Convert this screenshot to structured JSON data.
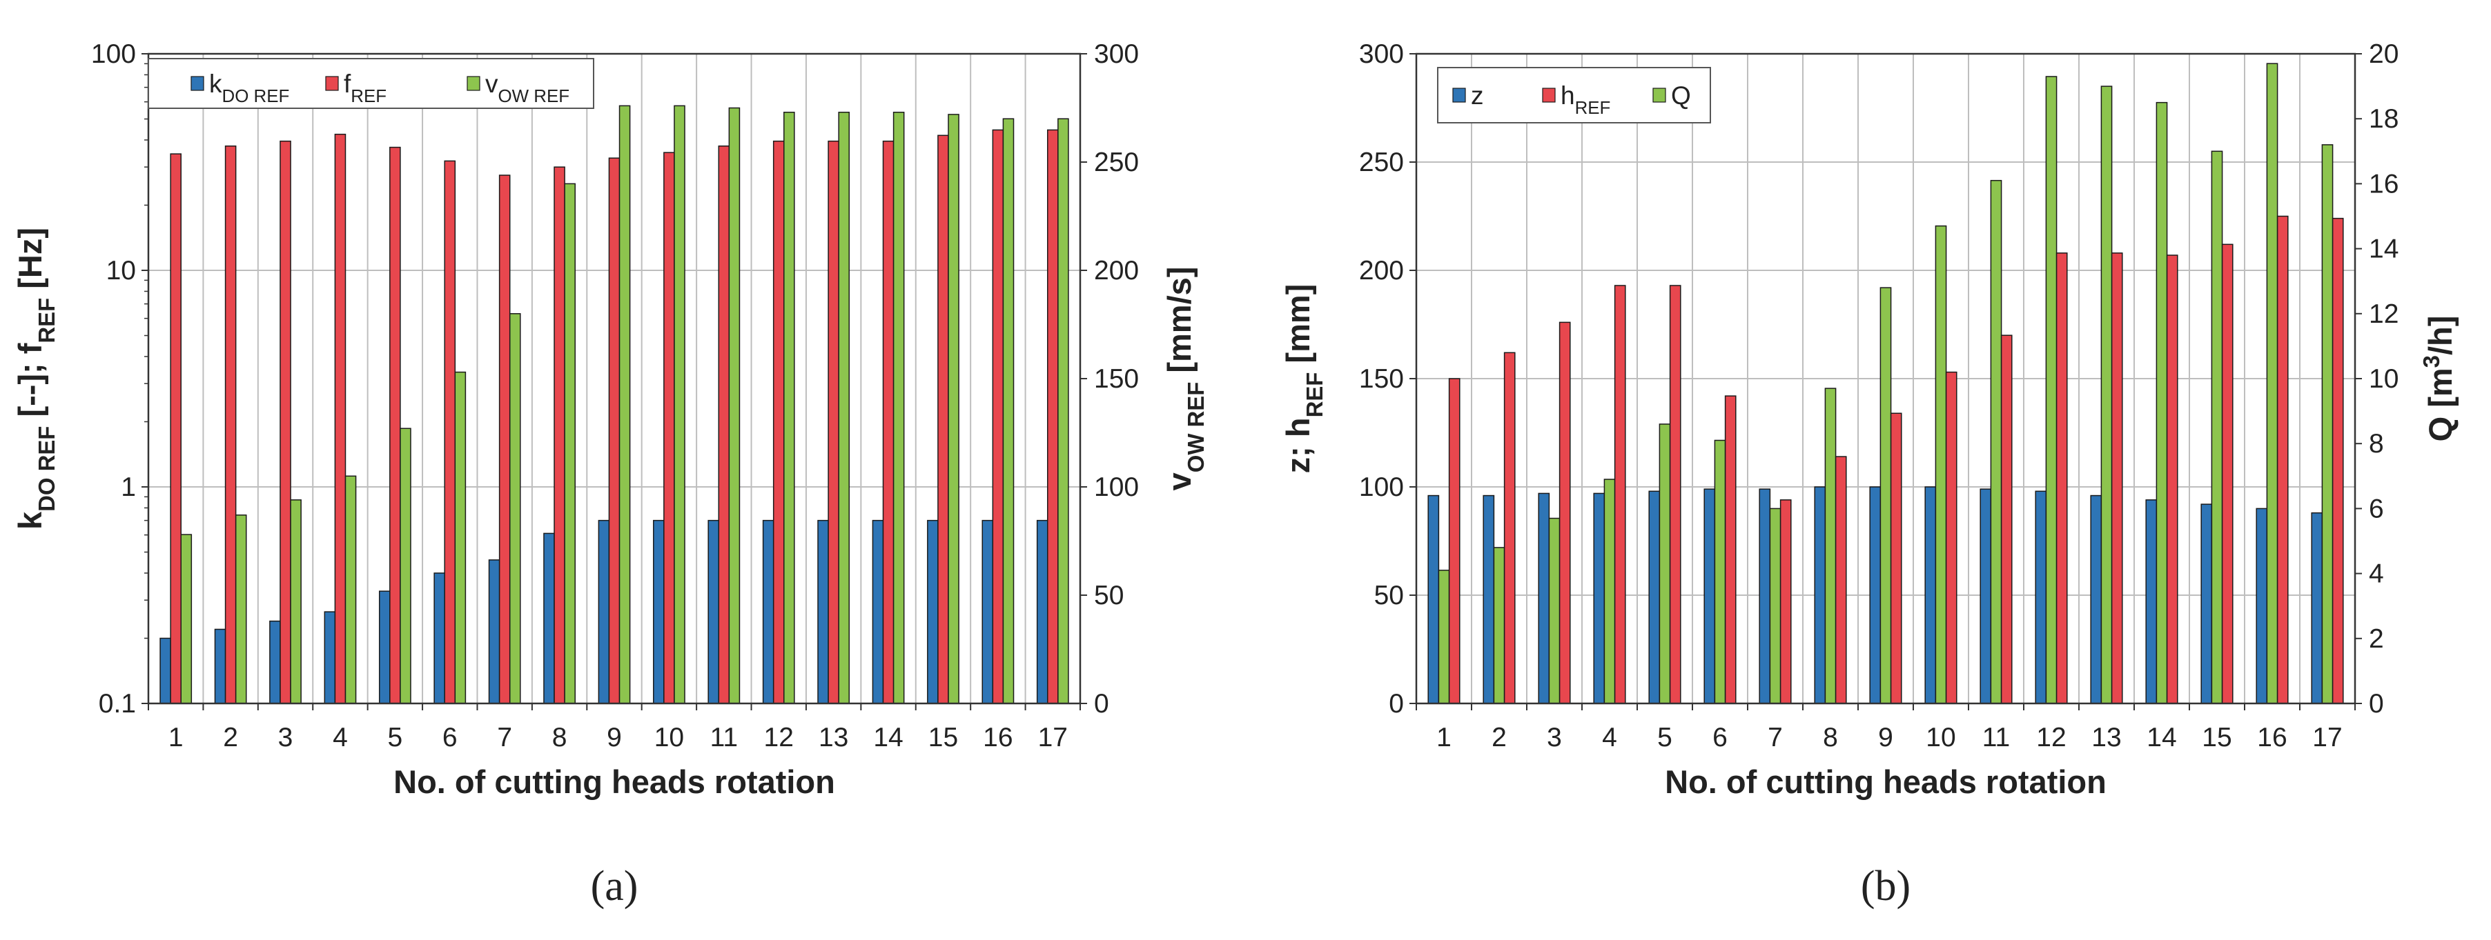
{
  "colors": {
    "blue": "#2E75B6",
    "red": "#E8474E",
    "green": "#8DC44E",
    "grid": "#BEBEBE",
    "axis": "#333333"
  },
  "chart_data": [
    {
      "type": "bar",
      "panel_label": "(a)",
      "categories": [
        "1",
        "2",
        "3",
        "4",
        "5",
        "6",
        "7",
        "8",
        "9",
        "10",
        "11",
        "12",
        "13",
        "14",
        "15",
        "16",
        "17"
      ],
      "xlabel": "No. of cutting heads rotation",
      "y_left": {
        "scale": "log",
        "range": [
          0.1,
          100
        ],
        "ticks": [
          "0.1",
          "1",
          "10",
          "100"
        ],
        "label": "kDO REF  [--]; fREF  [Hz]"
      },
      "y_right": {
        "scale": "linear",
        "range": [
          0,
          300
        ],
        "ticks": [
          "0",
          "50",
          "100",
          "150",
          "200",
          "250",
          "300"
        ],
        "label": "vOW REF  [mm/s]"
      },
      "grid": true,
      "legend": "top-left",
      "series": [
        {
          "name": "kDO REF",
          "axis": "left",
          "color": "blue",
          "values": [
            0.2,
            0.22,
            0.24,
            0.265,
            0.33,
            0.4,
            0.46,
            0.61,
            0.7,
            0.7,
            0.7,
            0.7,
            0.7,
            0.7,
            0.7,
            0.7,
            0.7
          ]
        },
        {
          "name": "fREF",
          "axis": "left",
          "color": "red",
          "values": [
            34.5,
            37.5,
            39.5,
            42.5,
            37.0,
            32.0,
            27.5,
            30.0,
            33.0,
            35.0,
            37.5,
            39.5,
            39.5,
            39.5,
            42.0,
            44.5,
            44.5
          ]
        },
        {
          "name": "vOW REF",
          "axis": "right",
          "color": "green",
          "values": [
            78,
            87,
            94,
            105,
            127,
            153,
            180,
            240,
            276,
            276,
            275,
            273,
            273,
            273,
            272,
            270,
            270
          ]
        }
      ],
      "legend_entries": [
        {
          "main": "k",
          "sub": "DO REF",
          "color": "blue"
        },
        {
          "main": "f",
          "sub": "REF",
          "color": "red"
        },
        {
          "main": "v",
          "sub": "OW REF",
          "color": "green"
        }
      ],
      "ylabel_left_parts": [
        {
          "main": "k",
          "sub": "DO REF"
        },
        {
          "main": "  [--]; f",
          "sub": "REF"
        },
        {
          "main": "  [Hz]",
          "sub": ""
        }
      ],
      "ylabel_right_parts": [
        {
          "main": "v",
          "sub": "OW REF"
        },
        {
          "main": "  [mm/s]",
          "sub": ""
        }
      ]
    },
    {
      "type": "bar",
      "panel_label": "(b)",
      "categories": [
        "1",
        "2",
        "3",
        "4",
        "5",
        "6",
        "7",
        "8",
        "9",
        "10",
        "11",
        "12",
        "13",
        "14",
        "15",
        "16",
        "17"
      ],
      "xlabel": "No. of cutting heads rotation",
      "y_left": {
        "scale": "linear",
        "range": [
          0,
          300
        ],
        "ticks": [
          "0",
          "50",
          "100",
          "150",
          "200",
          "250",
          "300"
        ],
        "label": "z; hREF  [mm]"
      },
      "y_right": {
        "scale": "linear",
        "range": [
          0,
          20
        ],
        "ticks": [
          "0",
          "2",
          "4",
          "6",
          "8",
          "10",
          "12",
          "14",
          "16",
          "18",
          "20"
        ],
        "label": "Q  [m3/h]"
      },
      "grid": true,
      "legend": "top-left",
      "series": [
        {
          "name": "z",
          "axis": "left",
          "color": "blue",
          "values": [
            96,
            96,
            97,
            97,
            98,
            99,
            99,
            100,
            100,
            100,
            99,
            98,
            96,
            94,
            92,
            90,
            88
          ]
        },
        {
          "name": "Q",
          "axis": "right",
          "color": "green",
          "values": [
            4.1,
            4.8,
            5.7,
            6.9,
            8.6,
            8.1,
            6.0,
            9.7,
            12.8,
            14.7,
            16.1,
            19.3,
            19.0,
            18.5,
            17.0,
            19.7,
            17.2
          ]
        },
        {
          "name": "hREF",
          "axis": "left",
          "color": "red",
          "values": [
            150,
            162,
            176,
            193,
            193,
            142,
            94,
            114,
            134,
            153,
            170,
            208,
            208,
            207,
            212,
            225,
            224
          ]
        }
      ],
      "legend_entries": [
        {
          "main": "z",
          "sub": "",
          "color": "blue"
        },
        {
          "main": "h",
          "sub": "REF",
          "color": "red"
        },
        {
          "main": "Q",
          "sub": "",
          "color": "green"
        }
      ],
      "ylabel_left_parts": [
        {
          "main": "z; h",
          "sub": "REF"
        },
        {
          "main": "  [mm]",
          "sub": ""
        }
      ],
      "ylabel_right_parts": [
        {
          "main": "Q  [m",
          "sub": ""
        },
        {
          "main": "3",
          "sup": true
        },
        {
          "main": "/h]",
          "sub": ""
        }
      ]
    }
  ]
}
